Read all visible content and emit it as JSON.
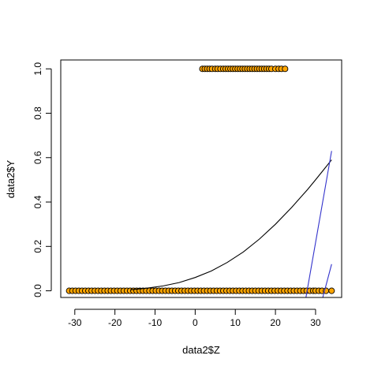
{
  "chart_data": {
    "type": "scatter",
    "title": "",
    "xlabel": "data2$Z",
    "ylabel": "data2$Y",
    "xlim": [
      -33.5,
      36.5
    ],
    "ylim": [
      -0.03,
      1.04
    ],
    "x_ticks": [
      -30,
      -20,
      -10,
      0,
      10,
      20,
      30
    ],
    "y_ticks": [
      0.0,
      0.2,
      0.4,
      0.6,
      0.8,
      1.0
    ],
    "x_tick_labels": [
      "-30",
      "-20",
      "-10",
      "0",
      "10",
      "20",
      "30"
    ],
    "y_tick_labels": [
      "0.0",
      "0.2",
      "0.4",
      "0.6",
      "0.8",
      "1.0"
    ],
    "grid": false,
    "point_fill": "#FFA500",
    "point_stroke": "#000000",
    "points_y1_x": [
      1.8,
      2.4,
      3.0,
      3.6,
      4.2,
      5.0,
      5.6,
      6.3,
      7.0,
      7.6,
      8.2,
      8.8,
      9.4,
      10.0,
      10.6,
      11.2,
      11.8,
      12.4,
      13.0,
      13.6,
      14.2,
      14.8,
      15.4,
      16.0,
      16.6,
      17.2,
      17.8,
      18.4,
      19.0,
      20.0,
      20.8,
      21.5,
      22.4
    ],
    "points_y0_x": [
      -31.4,
      -30.6,
      -29.8,
      -29.0,
      -28.2,
      -27.4,
      -26.6,
      -25.8,
      -25.0,
      -24.2,
      -23.4,
      -22.6,
      -21.8,
      -21.0,
      -20.2,
      -19.4,
      -18.6,
      -17.8,
      -17.0,
      -16.2,
      -15.4,
      -14.6,
      -13.8,
      -13.0,
      -12.2,
      -11.4,
      -10.6,
      -9.8,
      -9.0,
      -8.2,
      -7.4,
      -6.6,
      -5.8,
      -5.0,
      -4.2,
      -3.4,
      -2.6,
      -1.8,
      -1.0,
      -0.2,
      0.6,
      1.4,
      2.2,
      3.0,
      3.8,
      4.6,
      5.4,
      6.2,
      7.0,
      7.8,
      8.6,
      9.4,
      10.2,
      11.0,
      11.8,
      12.6,
      13.4,
      14.2,
      15.0,
      15.8,
      16.6,
      17.4,
      18.2,
      19.0,
      19.8,
      20.6,
      21.4,
      22.2,
      23.0,
      23.8,
      24.6,
      25.4,
      26.2,
      27.0,
      27.8,
      28.6,
      29.4,
      30.0,
      30.8,
      31.6,
      32.6,
      34.0
    ],
    "series": [
      {
        "type": "curve",
        "color": "#000000",
        "x": [
          -16,
          -12,
          -8,
          -4,
          0,
          4,
          8,
          12,
          16,
          20,
          24,
          28,
          30,
          32,
          34
        ],
        "y": [
          0.005,
          0.012,
          0.022,
          0.037,
          0.06,
          0.089,
          0.128,
          0.175,
          0.233,
          0.3,
          0.375,
          0.456,
          0.5,
          0.545,
          0.59
        ]
      },
      {
        "type": "line",
        "color": "#3333CC",
        "x": [
          27.6,
          34.0
        ],
        "y": [
          -0.03,
          0.63
        ]
      },
      {
        "type": "line",
        "color": "#3333CC",
        "x": [
          31.8,
          34.0
        ],
        "y": [
          -0.03,
          0.12
        ]
      }
    ]
  }
}
